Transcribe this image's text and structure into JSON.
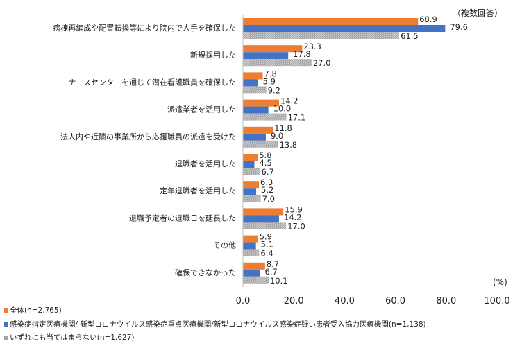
{
  "chart_data": {
    "type": "bar",
    "orientation": "horizontal",
    "note": "（複数回答）",
    "unit_label": "(%)",
    "xlim": [
      0,
      100
    ],
    "xticks": [
      "0.0",
      "20.0",
      "40.0",
      "60.0",
      "80.0",
      "100.0"
    ],
    "categories": [
      "病棟再編成や配置転換等により院内で人手を確保した",
      "新規採用した",
      "ナースセンターを通じて潜在看護職員を確保した",
      "派遣業者を活用した",
      "法人内や近隣の事業所から応援職員の派遣を受けた",
      "退職者を活用した",
      "定年退職者を活用した",
      "退職予定者の退職日を延長した",
      "その他",
      "確保できなかった"
    ],
    "series": [
      {
        "name": "全体(n=2,765)",
        "color": "#ED7D31",
        "values": [
          68.9,
          23.3,
          7.8,
          14.2,
          11.8,
          5.8,
          6.3,
          15.9,
          5.9,
          8.7
        ]
      },
      {
        "name": "感染症指定医療機関/ 新型コロナウイルス感染症重点医療機関/新型コロナウイルス感染症疑い患者受入協力医療機関(n=1,138)",
        "color": "#4472C4",
        "values": [
          79.6,
          17.8,
          5.9,
          10.0,
          9.0,
          4.5,
          5.2,
          14.2,
          5.1,
          6.7
        ]
      },
      {
        "name": "いずれにも当てはまらない(n=1,627)",
        "color": "#A5A5A5",
        "values": [
          61.5,
          27.0,
          9.2,
          17.1,
          13.8,
          6.7,
          7.0,
          17.0,
          6.4,
          10.1
        ]
      }
    ]
  }
}
